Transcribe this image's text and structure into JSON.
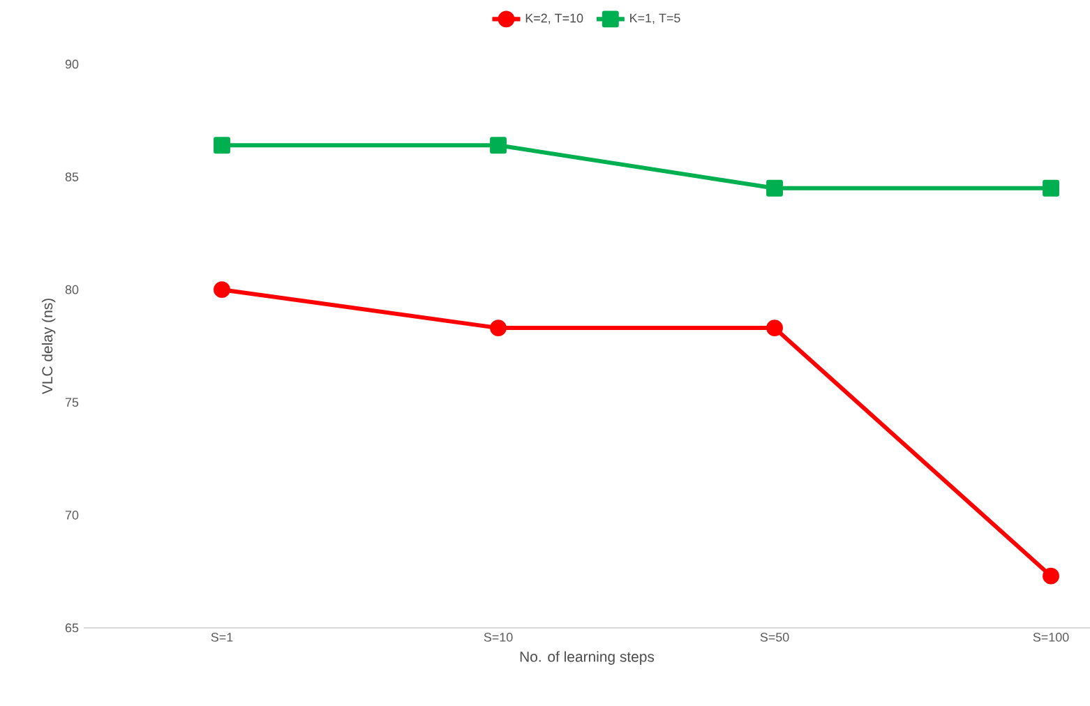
{
  "chart_data": {
    "type": "line",
    "xlabel": "No. of learning steps",
    "ylabel": "VLC delay (ns)",
    "categories": [
      "S=1",
      "S=10",
      "S=50",
      "S=100"
    ],
    "series": [
      {
        "name": "K=2, T=10",
        "color": "#ff0000",
        "marker": "circle",
        "values": [
          80.0,
          78.3,
          78.3,
          67.3
        ]
      },
      {
        "name": "K=1, T=5",
        "color": "#00b050",
        "marker": "square",
        "values": [
          86.4,
          86.4,
          84.5,
          84.5
        ]
      }
    ],
    "ylim": [
      65,
      90
    ],
    "yticks": [
      65,
      70,
      75,
      80,
      85,
      90
    ],
    "grid": false,
    "legend": "top",
    "line_style": "solid"
  }
}
